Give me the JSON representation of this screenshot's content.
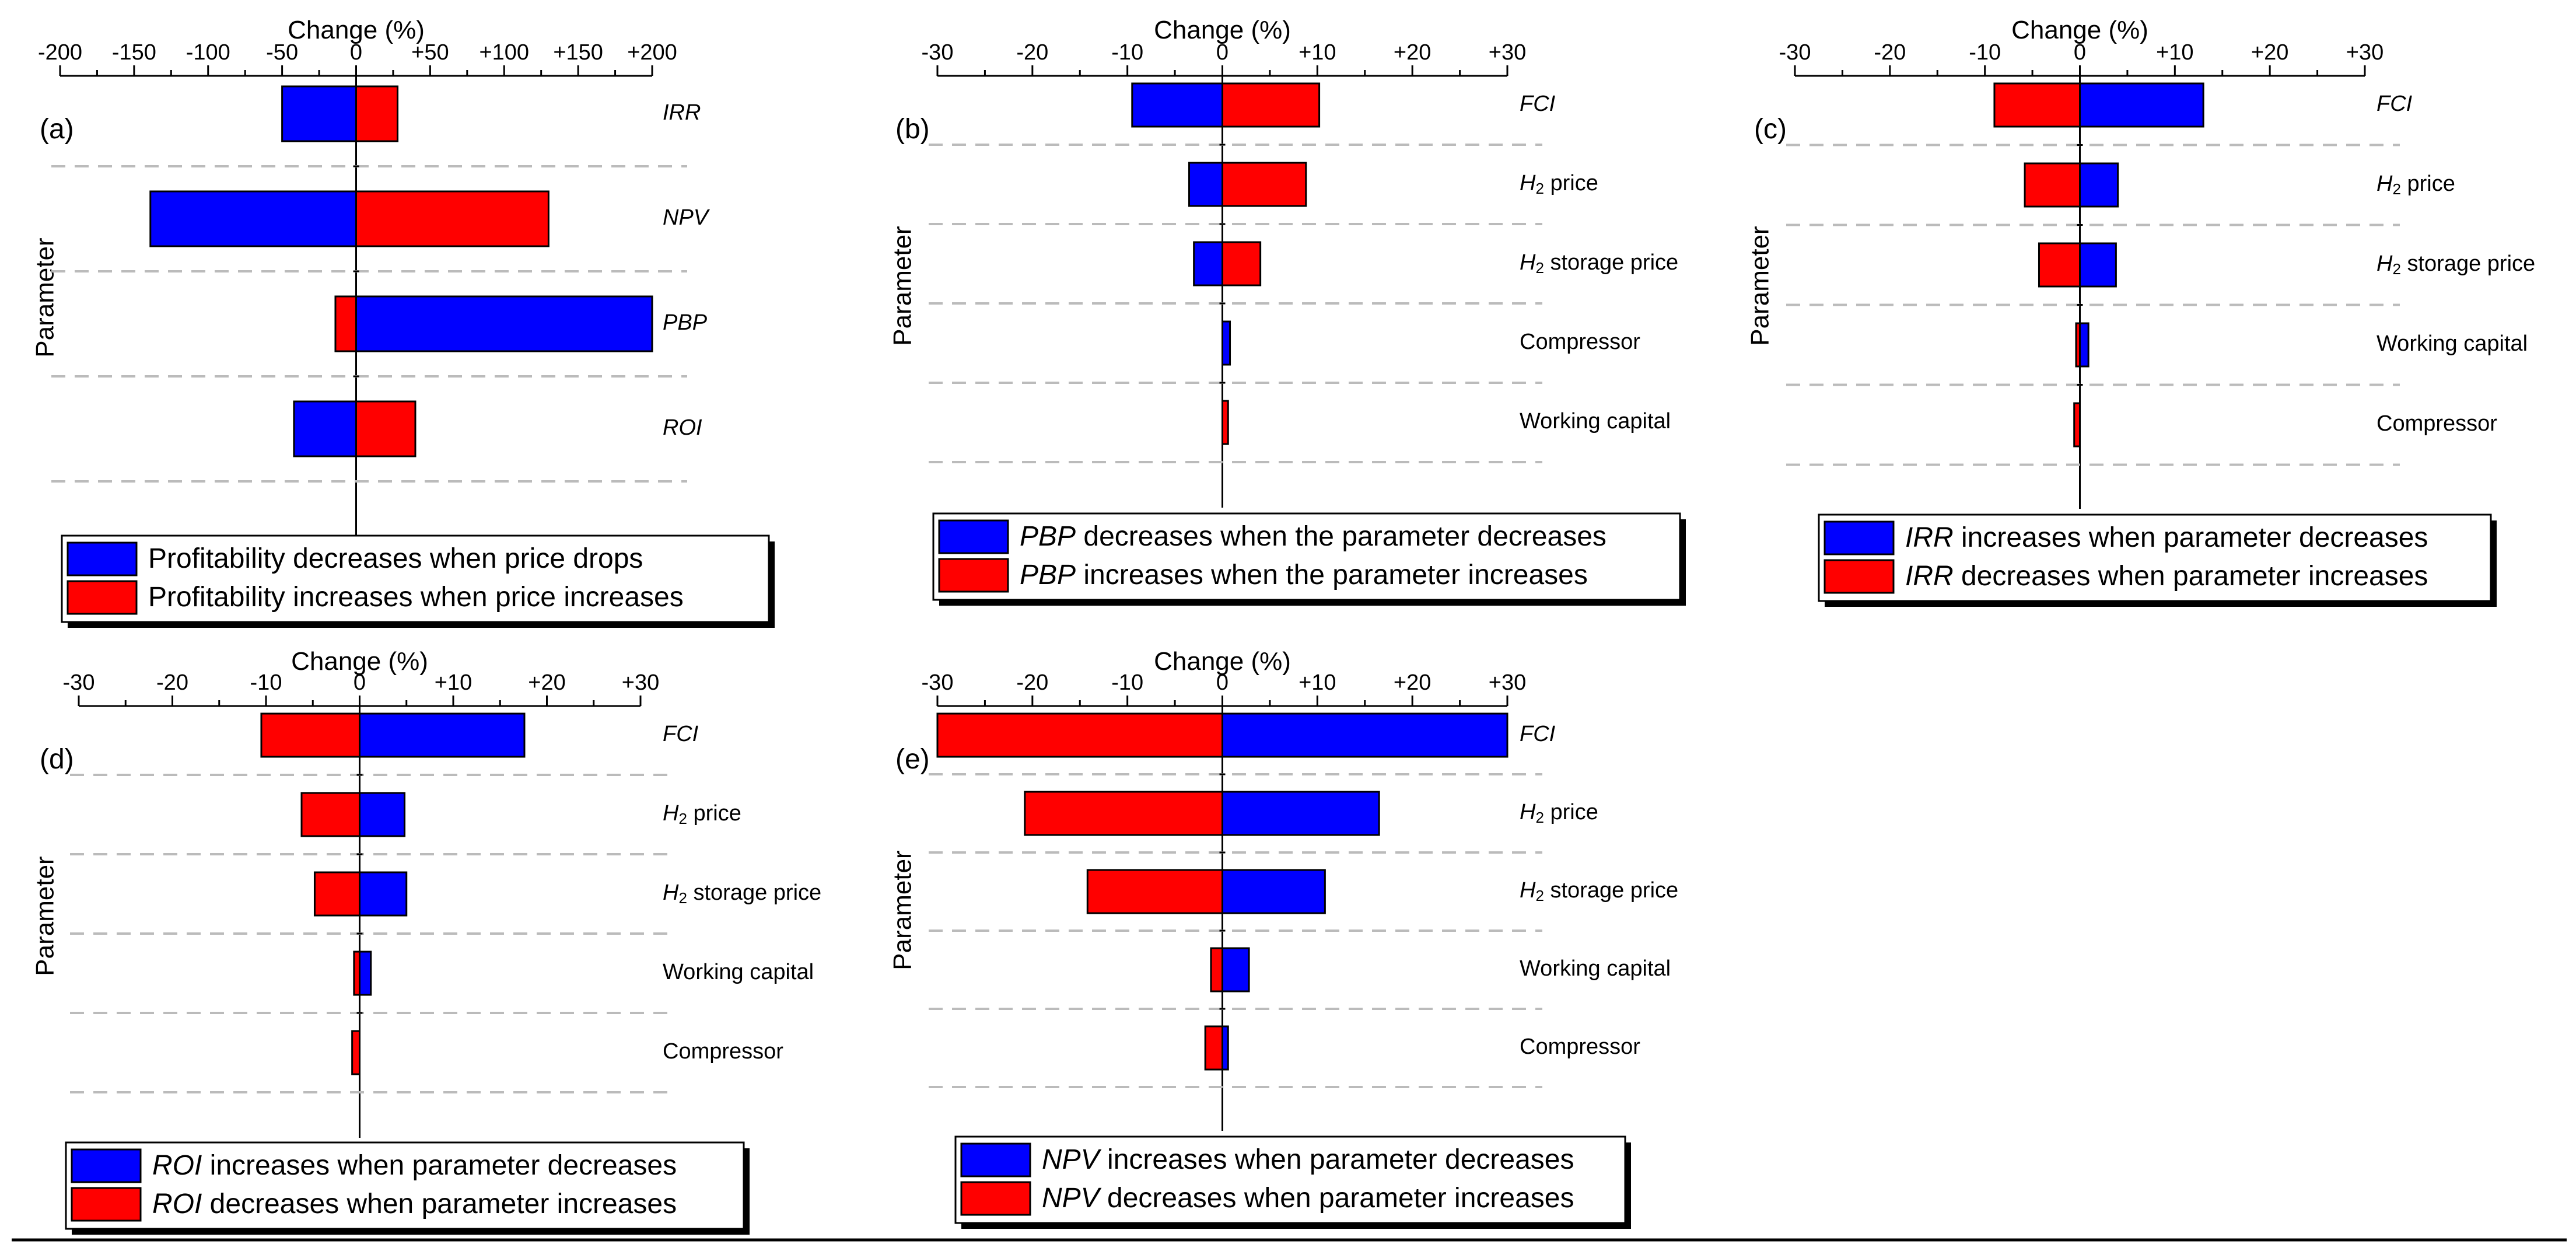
{
  "figure": {
    "axis_title": "Change (%)",
    "ylabel": "Parameter",
    "colors": {
      "blue": "#0000FF",
      "red": "#FF0000",
      "axis": "#000000",
      "grid": "#BBBBBB"
    }
  },
  "chart_data": [
    {
      "panel": "(a)",
      "type": "bar",
      "orientation": "horizontal-tornado",
      "xlabel": "Change (%)",
      "ylabel": "Parameter",
      "xlim": [
        -200,
        200
      ],
      "ticks": [
        -200,
        -150,
        -100,
        -50,
        0,
        50,
        100,
        150,
        200
      ],
      "tick_labels": [
        "-200",
        "-150",
        "-100",
        "-50",
        "0",
        "+50",
        "+100",
        "+150",
        "+200"
      ],
      "categories": [
        {
          "label": "IRR",
          "italic": true
        },
        {
          "label": "NPV",
          "italic": true
        },
        {
          "label": "PBP",
          "italic": true
        },
        {
          "label": "ROI",
          "italic": true
        }
      ],
      "series": [
        {
          "name": "Profitability decreases when price drops",
          "color": "blue",
          "values": [
            -50,
            -139,
            200,
            -42
          ]
        },
        {
          "name": "Profitability increases when price increases",
          "color": "red",
          "values": [
            28,
            130,
            -14,
            40
          ]
        }
      ],
      "legend": [
        {
          "color": "blue",
          "parts": [
            {
              "t": "Profitability decreases when price drops",
              "i": false
            }
          ]
        },
        {
          "color": "red",
          "parts": [
            {
              "t": "Profitability increases when price increases",
              "i": false
            }
          ]
        }
      ]
    },
    {
      "panel": "(b)",
      "type": "bar",
      "orientation": "horizontal-tornado",
      "xlabel": "Change (%)",
      "ylabel": "Parameter",
      "xlim": [
        -30,
        30
      ],
      "ticks": [
        -30,
        -20,
        -10,
        0,
        10,
        20,
        30
      ],
      "tick_labels": [
        "-30",
        "-20",
        "-10",
        "0",
        "+10",
        "+20",
        "+30"
      ],
      "categories": [
        {
          "label": "FCI",
          "italic": true
        },
        {
          "label": "H2 price",
          "h2": true
        },
        {
          "label": "H2 storage price",
          "h2": true
        },
        {
          "label": "Compressor"
        },
        {
          "label": "Working capital"
        }
      ],
      "series": [
        {
          "name": "PBP decreases when the parameter decreases",
          "color": "blue",
          "values": [
            -9.5,
            -3.5,
            -3.0,
            0.8,
            0
          ]
        },
        {
          "name": "PBP increases when the parameter increases",
          "color": "red",
          "values": [
            10.2,
            8.8,
            4.0,
            0,
            0.6
          ]
        }
      ],
      "legend": [
        {
          "color": "blue",
          "parts": [
            {
              "t": "PBP",
              "i": true
            },
            {
              "t": " decreases when the parameter decreases",
              "i": false
            }
          ]
        },
        {
          "color": "red",
          "parts": [
            {
              "t": "PBP",
              "i": true
            },
            {
              "t": " increases when the parameter increases",
              "i": false
            }
          ]
        }
      ]
    },
    {
      "panel": "(c)",
      "type": "bar",
      "orientation": "horizontal-tornado",
      "xlabel": "Change (%)",
      "ylabel": "Parameter",
      "xlim": [
        -30,
        30
      ],
      "ticks": [
        -30,
        -20,
        -10,
        0,
        10,
        20,
        30
      ],
      "tick_labels": [
        "-30",
        "-20",
        "-10",
        "0",
        "+10",
        "+20",
        "+30"
      ],
      "categories": [
        {
          "label": "FCI",
          "italic": true
        },
        {
          "label": "H2 price",
          "h2": true
        },
        {
          "label": "H2 storage price",
          "h2": true
        },
        {
          "label": "Working capital"
        },
        {
          "label": "Compressor"
        }
      ],
      "series": [
        {
          "name": "IRR increases when parameter decreases",
          "color": "blue",
          "values": [
            13.0,
            4.0,
            3.8,
            0.9,
            0
          ]
        },
        {
          "name": "IRR decreases when parameter increases",
          "color": "red",
          "values": [
            -9.0,
            -5.8,
            -4.3,
            -0.4,
            -0.6
          ]
        }
      ],
      "legend": [
        {
          "color": "blue",
          "parts": [
            {
              "t": "IRR",
              "i": true
            },
            {
              "t": " increases when parameter decreases",
              "i": false
            }
          ]
        },
        {
          "color": "red",
          "parts": [
            {
              "t": "IRR",
              "i": true
            },
            {
              "t": " decreases when parameter increases",
              "i": false
            }
          ]
        }
      ]
    },
    {
      "panel": "(d)",
      "type": "bar",
      "orientation": "horizontal-tornado",
      "xlabel": "Change (%)",
      "ylabel": "Parameter",
      "xlim": [
        -30,
        30
      ],
      "ticks": [
        -30,
        -20,
        -10,
        0,
        10,
        20,
        30
      ],
      "tick_labels": [
        "-30",
        "-20",
        "-10",
        "0",
        "+10",
        "+20",
        "+30"
      ],
      "categories": [
        {
          "label": "FCI",
          "italic": true
        },
        {
          "label": "H2 price",
          "h2": true
        },
        {
          "label": "H2 storage price",
          "h2": true
        },
        {
          "label": "Working capital"
        },
        {
          "label": "Compressor"
        }
      ],
      "series": [
        {
          "name": "ROI increases when parameter decreases",
          "color": "blue",
          "values": [
            17.6,
            4.8,
            5.0,
            1.2,
            0
          ]
        },
        {
          "name": "ROI decreases when parameter increases",
          "color": "red",
          "values": [
            -10.5,
            -6.2,
            -4.8,
            -0.6,
            -0.8
          ]
        }
      ],
      "legend": [
        {
          "color": "blue",
          "parts": [
            {
              "t": "ROI",
              "i": true
            },
            {
              "t": " increases when parameter decreases",
              "i": false
            }
          ]
        },
        {
          "color": "red",
          "parts": [
            {
              "t": "ROI",
              "i": true
            },
            {
              "t": " decreases when parameter increases",
              "i": false
            }
          ]
        }
      ]
    },
    {
      "panel": "(e)",
      "type": "bar",
      "orientation": "horizontal-tornado",
      "xlabel": "Change (%)",
      "ylabel": "Parameter",
      "xlim": [
        -30,
        30
      ],
      "ticks": [
        -30,
        -20,
        -10,
        0,
        10,
        20,
        30
      ],
      "tick_labels": [
        "-30",
        "-20",
        "-10",
        "0",
        "+10",
        "+20",
        "+30"
      ],
      "categories": [
        {
          "label": "FCI",
          "italic": true
        },
        {
          "label": "H2 price",
          "h2": true
        },
        {
          "label": "H2 storage price",
          "h2": true
        },
        {
          "label": "Working capital"
        },
        {
          "label": "Compressor"
        }
      ],
      "series": [
        {
          "name": "NPV increases when parameter decreases",
          "color": "blue",
          "values": [
            30.0,
            16.5,
            10.8,
            2.8,
            0.6
          ]
        },
        {
          "name": "NPV decreases when parameter increases",
          "color": "red",
          "values": [
            -30.0,
            -20.8,
            -14.2,
            -1.2,
            -1.8
          ]
        }
      ],
      "legend": [
        {
          "color": "blue",
          "parts": [
            {
              "t": "NPV",
              "i": true
            },
            {
              "t": " increases when parameter decreases",
              "i": false
            }
          ]
        },
        {
          "color": "red",
          "parts": [
            {
              "t": "NPV",
              "i": true
            },
            {
              "t": " decreases when parameter increases",
              "i": false
            }
          ]
        }
      ]
    }
  ]
}
